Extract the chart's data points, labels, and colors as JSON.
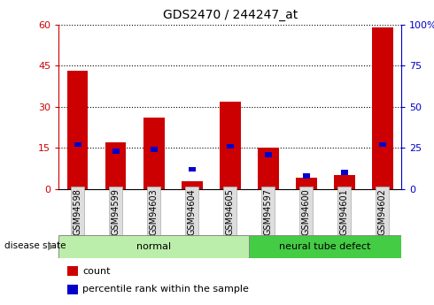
{
  "title": "GDS2470 / 244247_at",
  "samples": [
    "GSM94598",
    "GSM94599",
    "GSM94603",
    "GSM94604",
    "GSM94605",
    "GSM94597",
    "GSM94600",
    "GSM94601",
    "GSM94602"
  ],
  "counts": [
    43,
    17,
    26,
    3,
    32,
    15,
    4,
    5,
    59
  ],
  "percentile_ranks": [
    27,
    23,
    24,
    12,
    26,
    21,
    8,
    10,
    27
  ],
  "normal_indices": [
    0,
    1,
    2,
    3,
    4
  ],
  "defect_indices": [
    5,
    6,
    7,
    8
  ],
  "left_ylim": [
    0,
    60
  ],
  "left_yticks": [
    0,
    15,
    30,
    45,
    60
  ],
  "right_ylim": [
    0,
    100
  ],
  "right_yticks": [
    0,
    25,
    50,
    75,
    100
  ],
  "right_yticklabels": [
    "0",
    "25",
    "50",
    "75",
    "100%"
  ],
  "bar_color_red": "#cc0000",
  "bar_color_blue": "#0000cc",
  "normal_color": "#bbeeaa",
  "defect_color": "#44cc44",
  "tick_label_bg": "#dddddd",
  "left_tick_color": "#cc0000",
  "right_tick_color": "#0000cc",
  "bar_width": 0.55,
  "blue_bar_width": 0.18,
  "blue_bar_height": 1.8,
  "legend_count_label": "count",
  "legend_pct_label": "percentile rank within the sample",
  "disease_state_label": "disease state",
  "normal_label": "normal",
  "defect_label": "neural tube defect"
}
